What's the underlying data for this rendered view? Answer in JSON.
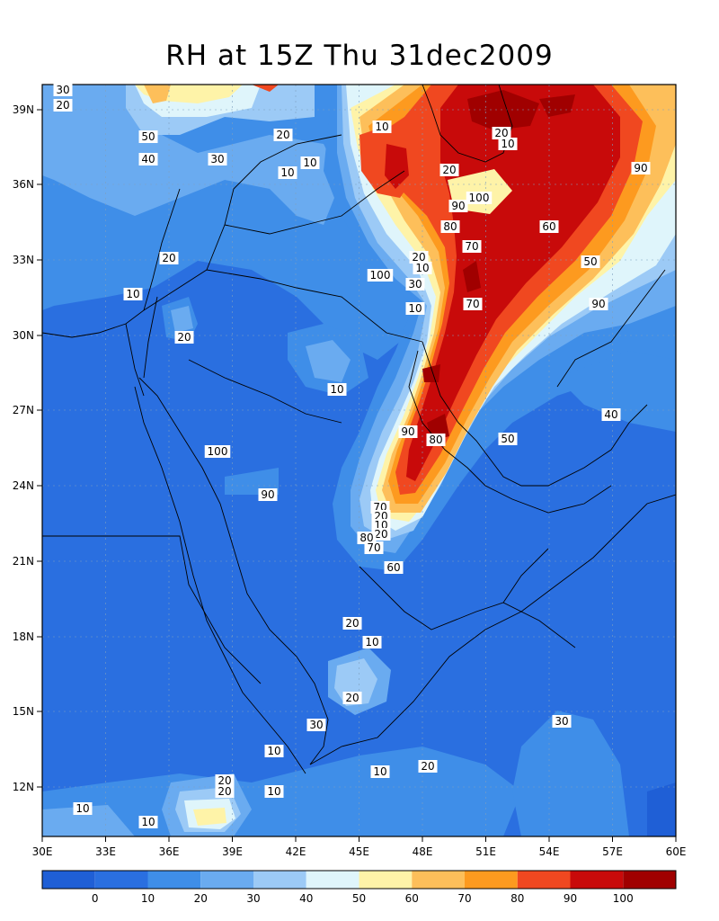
{
  "title": "RH at 15Z Thu 31dec2009",
  "colors": {
    "lvl_0": "#1f5fd6",
    "lvl_1": "#2a6fe0",
    "lvl_2": "#3f8ee8",
    "lvl_3": "#6aabf0",
    "lvl_4": "#9ccaf6",
    "lvl_5": "#dff5fb",
    "lvl_6": "#fef3a8",
    "lvl_7": "#fdbf5a",
    "lvl_8": "#fd9a1f",
    "lvl_9": "#f04820",
    "lvl_10": "#c80a0a",
    "lvl_11": "#a00000"
  },
  "map": {
    "lon_ticks": [
      "30E",
      "33E",
      "36E",
      "39E",
      "42E",
      "45E",
      "48E",
      "51E",
      "54E",
      "57E",
      "60E"
    ],
    "lat_ticks": [
      "39N",
      "36N",
      "33N",
      "30N",
      "27N",
      "24N",
      "21N",
      "18N",
      "15N",
      "12N"
    ],
    "contour_labels": [
      "30",
      "20",
      "50",
      "40",
      "20",
      "10",
      "10",
      "30",
      "20",
      "10",
      "20",
      "10",
      "20",
      "10",
      "10",
      "20",
      "100",
      "90",
      "80",
      "70",
      "60",
      "50",
      "70",
      "80",
      "90",
      "90",
      "90",
      "100",
      "100",
      "90",
      "70",
      "20",
      "10",
      "20",
      "80",
      "70",
      "60",
      "50",
      "40",
      "30",
      "20",
      "10",
      "20",
      "30",
      "10",
      "10",
      "10",
      "10",
      "20",
      "20",
      "30",
      "20",
      "10",
      "10",
      "20",
      "10"
    ]
  },
  "colorbar": {
    "ticks": [
      "0",
      "10",
      "20",
      "30",
      "40",
      "50",
      "60",
      "70",
      "80",
      "90",
      "100"
    ]
  },
  "chart_data": {
    "type": "heatmap",
    "title": "RH at 15Z Thu 31dec2009",
    "variable": "RH",
    "x_range": [
      "30E",
      "60E"
    ],
    "y_range": [
      "10N",
      "40N"
    ],
    "contour_levels": [
      0,
      10,
      20,
      30,
      40,
      50,
      60,
      70,
      80,
      90,
      100
    ],
    "notes": "Filled contour map of relative humidity over the Arabian Peninsula / Middle East with coastlines and borders; maximum (100) over Iran and Persian Gulf, minima (0-10) over Red Sea and Arabian Peninsula"
  }
}
